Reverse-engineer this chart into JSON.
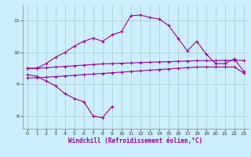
{
  "x": [
    0,
    1,
    2,
    3,
    4,
    5,
    6,
    7,
    8,
    9,
    10,
    11,
    12,
    13,
    14,
    15,
    16,
    17,
    18,
    19,
    20,
    21,
    22,
    23
  ],
  "line1": [
    9.5,
    9.5,
    9.65,
    9.85,
    10.0,
    10.2,
    10.35,
    10.45,
    10.35,
    10.55,
    10.65,
    11.15,
    11.18,
    11.1,
    11.05,
    10.85,
    10.45,
    10.05,
    10.35,
    9.95,
    9.65,
    9.65,
    9.8,
    9.4
  ],
  "line2": [
    9.5,
    9.5,
    9.52,
    9.54,
    9.56,
    9.58,
    9.6,
    9.62,
    9.64,
    9.65,
    9.66,
    9.67,
    9.68,
    9.69,
    9.7,
    9.71,
    9.72,
    9.73,
    9.74,
    9.74,
    9.74,
    9.75,
    9.75,
    9.75
  ],
  "line3": [
    9.2,
    9.2,
    9.22,
    9.24,
    9.26,
    9.28,
    9.3,
    9.32,
    9.34,
    9.36,
    9.38,
    9.4,
    9.42,
    9.44,
    9.46,
    9.48,
    9.5,
    9.52,
    9.54,
    9.54,
    9.54,
    9.54,
    9.54,
    9.35
  ],
  "line4": [
    9.3,
    9.25,
    9.1,
    8.95,
    8.7,
    8.55,
    8.45,
    8.0,
    7.95,
    8.3,
    null,
    null,
    null,
    null,
    null,
    null,
    null,
    null,
    null,
    null,
    null,
    null,
    null,
    null
  ],
  "bg_color": "#cceeff",
  "line_color": "#990099",
  "grid_color": "#aacccc",
  "xlabel": "Windchill (Refroidissement éolien,°C)",
  "yticks": [
    8,
    9,
    10,
    11
  ],
  "xticks": [
    0,
    1,
    2,
    3,
    4,
    5,
    6,
    7,
    8,
    9,
    10,
    11,
    12,
    13,
    14,
    15,
    16,
    17,
    18,
    19,
    20,
    21,
    22,
    23
  ],
  "ylim": [
    7.6,
    11.5
  ],
  "xlim": [
    -0.5,
    23.5
  ]
}
